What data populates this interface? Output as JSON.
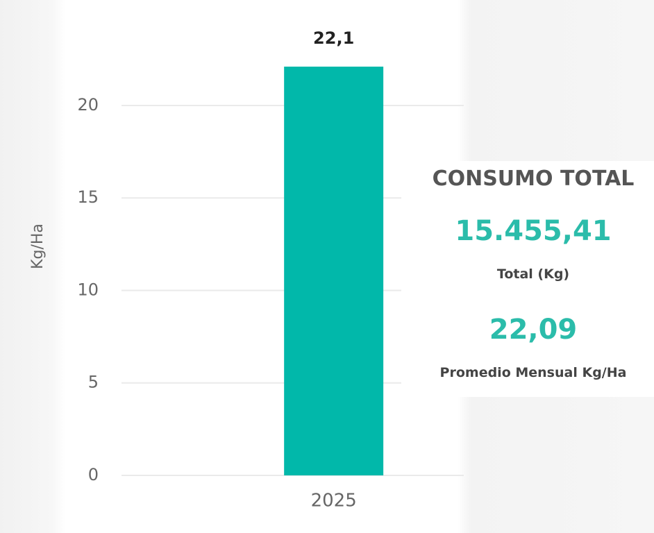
{
  "chart_data": {
    "type": "bar",
    "categories": [
      "2025"
    ],
    "values": [
      22.1
    ],
    "value_labels": [
      "22,1"
    ],
    "color": "#01b8aa",
    "ylabel": "Kg/Ha",
    "ylim": [
      0,
      22.1
    ],
    "yticks": [
      0,
      5,
      10,
      15,
      20
    ],
    "grid": true
  },
  "kpi": {
    "title": "CONSUMO TOTAL",
    "items": [
      {
        "value": "15.455,41",
        "label": "Total (Kg)"
      },
      {
        "value": "22,09",
        "label": "Promedio Mensual Kg/Ha"
      }
    ]
  }
}
